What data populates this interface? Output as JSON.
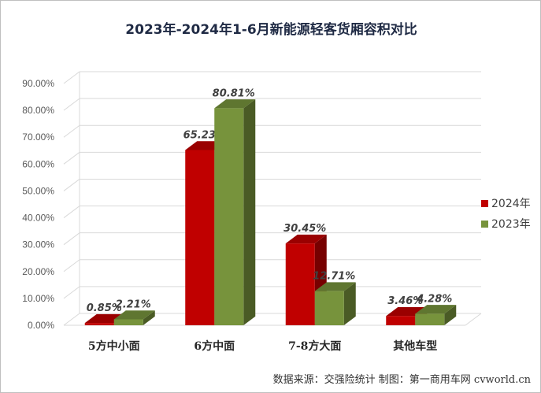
{
  "chart_data": {
    "type": "bar",
    "title": "2023年-2024年1-6月新能源轻客货厢容积对比",
    "categories": [
      "5方中小面",
      "6方中面",
      "7-8方大面",
      "其他车型"
    ],
    "series": [
      {
        "name": "2024年",
        "color": "#c00000",
        "values": [
          0.85,
          65.23,
          30.45,
          3.46
        ],
        "labels": [
          "0.85%",
          "65.23%",
          "30.45%",
          "3.46%"
        ]
      },
      {
        "name": "2023年",
        "color": "#77933c",
        "values": [
          2.21,
          80.81,
          12.71,
          4.28
        ],
        "labels": [
          "2.21%",
          "80.81%",
          "12.71%",
          "4.28%"
        ]
      }
    ],
    "ylim": [
      0,
      90
    ],
    "yticks": [
      "0.00%",
      "10.00%",
      "20.00%",
      "30.00%",
      "40.00%",
      "50.00%",
      "60.00%",
      "70.00%",
      "80.00%",
      "90.00%"
    ],
    "legend_position": "right",
    "grid": true,
    "xlabel": "",
    "ylabel": ""
  },
  "source_note": "数据来源：交强险统计  制图：第一商用车网 cvworld.cn"
}
